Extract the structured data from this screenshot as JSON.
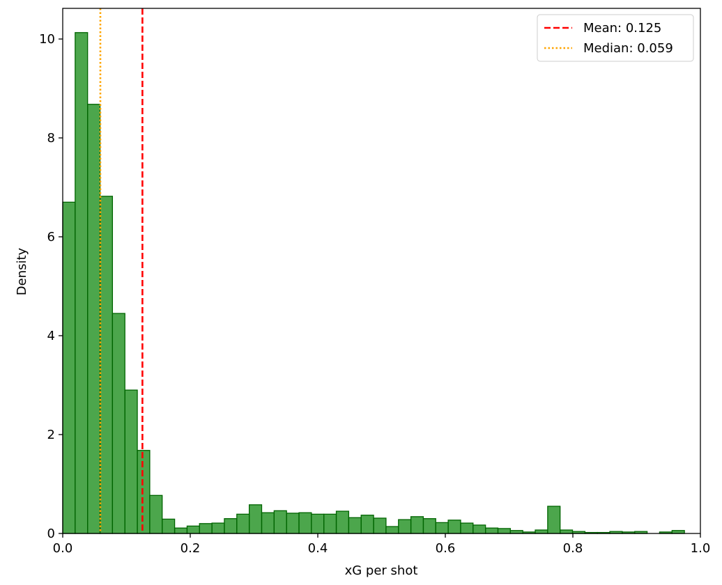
{
  "chart_data": {
    "type": "histogram",
    "xlabel": "xG per shot",
    "ylabel": "Density",
    "bins": [
      0,
      0.0195,
      0.039,
      0.0585,
      0.078,
      0.0975,
      0.117,
      0.1365,
      0.156,
      0.1755,
      0.195,
      0.2145,
      0.234,
      0.2535,
      0.273,
      0.2925,
      0.312,
      0.3315,
      0.351,
      0.3705,
      0.39,
      0.4095,
      0.429,
      0.4485,
      0.468,
      0.4875,
      0.507,
      0.5265,
      0.546,
      0.5655,
      0.585,
      0.6045,
      0.624,
      0.6435,
      0.663,
      0.6825,
      0.702,
      0.7215,
      0.741,
      0.7605,
      0.78,
      0.7995,
      0.819,
      0.8385,
      0.858,
      0.8775,
      0.897,
      0.9165,
      0.936,
      0.9555,
      0.975
    ],
    "values": [
      6.7,
      10.13,
      8.68,
      6.82,
      4.45,
      2.9,
      1.68,
      0.77,
      0.29,
      0.11,
      0.15,
      0.2,
      0.21,
      0.3,
      0.39,
      0.58,
      0.42,
      0.46,
      0.41,
      0.42,
      0.39,
      0.39,
      0.45,
      0.32,
      0.37,
      0.31,
      0.14,
      0.28,
      0.34,
      0.3,
      0.22,
      0.27,
      0.21,
      0.17,
      0.11,
      0.1,
      0.06,
      0.03,
      0.07,
      0.55,
      0.07,
      0.04,
      0.02,
      0.02,
      0.04,
      0.03,
      0.04,
      0,
      0.03,
      0.06
    ],
    "color": "#008000",
    "edgecolor": "#006400",
    "alpha": 0.7,
    "lines": [
      {
        "label": "Mean: 0.125",
        "value": 0.125,
        "color": "#ff0000",
        "style": "dashed"
      },
      {
        "label": "Median: 0.059",
        "value": 0.059,
        "color": "#ffa500",
        "style": "dotted"
      }
    ],
    "legend": "upper right",
    "xlim": [
      0,
      1.0
    ],
    "xticks": [
      {
        "value": 0,
        "label": "0.0"
      },
      {
        "value": 0.2,
        "label": "0.2"
      },
      {
        "value": 0.4,
        "label": "0.4"
      },
      {
        "value": 0.6,
        "label": "0.6"
      },
      {
        "value": 0.8,
        "label": "0.8"
      },
      {
        "value": 1.0,
        "label": "1.0"
      }
    ],
    "ylim": [
      0,
      10.62
    ],
    "yticks": [
      0,
      2,
      4,
      6,
      8,
      10
    ]
  }
}
